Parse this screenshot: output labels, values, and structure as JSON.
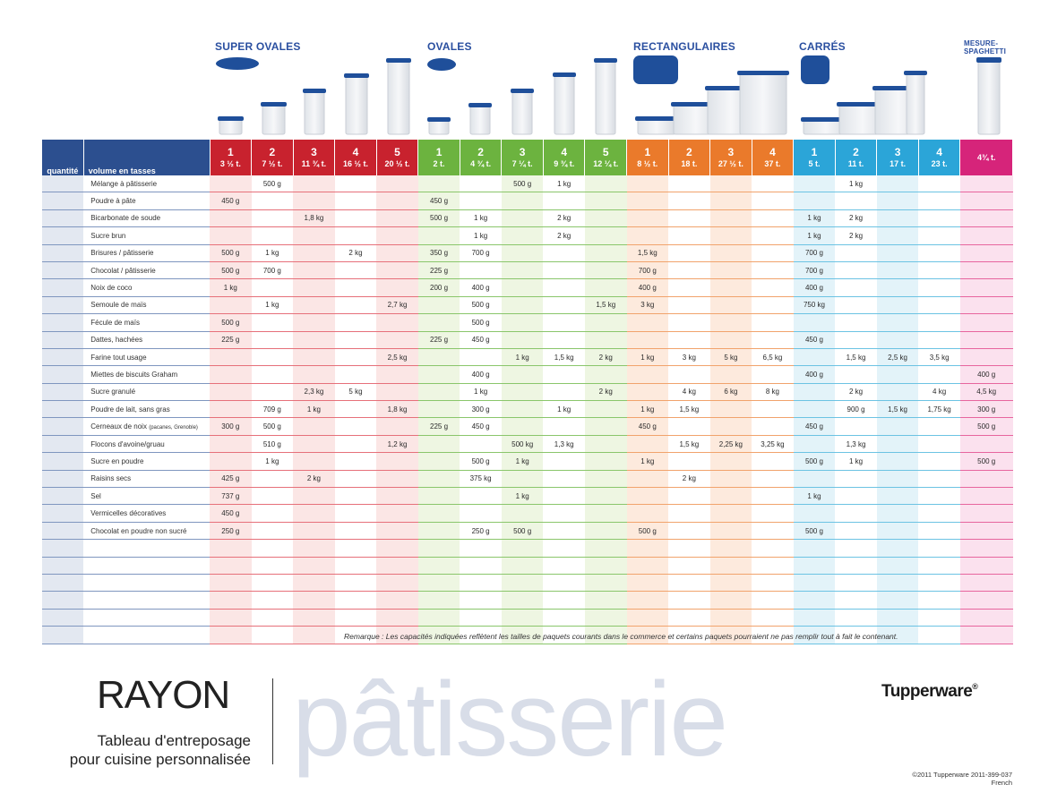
{
  "sections": {
    "super_ovales": "SUPER OVALES",
    "ovales": "OVALES",
    "rectangulaires": "RECTANGULAIRES",
    "carres": "CARRÉS",
    "mesure_spaghetti": "MESURE-SPAGHETTI"
  },
  "header": {
    "quantite": "quantité",
    "volume": "volume en tasses"
  },
  "columns": [
    {
      "group": "rouge",
      "num": "1",
      "vol": "3 ½ t."
    },
    {
      "group": "rouge",
      "num": "2",
      "vol": "7 ½ t."
    },
    {
      "group": "rouge",
      "num": "3",
      "vol": "11 ¾ t."
    },
    {
      "group": "rouge",
      "num": "4",
      "vol": "16 ½ t."
    },
    {
      "group": "rouge",
      "num": "5",
      "vol": "20 ½ t."
    },
    {
      "group": "vert",
      "num": "1",
      "vol": "2 t."
    },
    {
      "group": "vert",
      "num": "2",
      "vol": "4 ¾ t."
    },
    {
      "group": "vert",
      "num": "3",
      "vol": "7 ¼ t."
    },
    {
      "group": "vert",
      "num": "4",
      "vol": "9 ¾ t."
    },
    {
      "group": "vert",
      "num": "5",
      "vol": "12 ¼ t."
    },
    {
      "group": "orange",
      "num": "1",
      "vol": "8 ½ t."
    },
    {
      "group": "orange",
      "num": "2",
      "vol": "18 t."
    },
    {
      "group": "orange",
      "num": "3",
      "vol": "27 ½ t."
    },
    {
      "group": "orange",
      "num": "4",
      "vol": "37 t."
    },
    {
      "group": "bleu",
      "num": "1",
      "vol": "5 t."
    },
    {
      "group": "bleu",
      "num": "2",
      "vol": "11 t."
    },
    {
      "group": "bleu",
      "num": "3",
      "vol": "17 t."
    },
    {
      "group": "bleu",
      "num": "4",
      "vol": "23 t."
    },
    {
      "group": "rose",
      "num": "",
      "vol": "4¾ t."
    }
  ],
  "header_colors": {
    "rouge": "#c8222e",
    "vert": "#6cb33f",
    "orange": "#ea7a2b",
    "bleu": "#2ba5d8",
    "rose": "#d6247a"
  },
  "rows": [
    {
      "item": "Mélange à pâtisserie",
      "values": [
        "",
        "500 g",
        "",
        "",
        "",
        "",
        "",
        "500 g",
        "1 kg",
        "",
        "",
        "",
        "",
        "",
        "",
        "1 kg",
        "",
        "",
        ""
      ]
    },
    {
      "item": "Poudre à pâte",
      "values": [
        "450 g",
        "",
        "",
        "",
        "",
        "450 g",
        "",
        "",
        "",
        "",
        "",
        "",
        "",
        "",
        "",
        "",
        "",
        "",
        ""
      ]
    },
    {
      "item": "Bicarbonate de soude",
      "values": [
        "",
        "",
        "1,8 kg",
        "",
        "",
        "500 g",
        "1 kg",
        "",
        "2 kg",
        "",
        "",
        "",
        "",
        "",
        "1 kg",
        "2 kg",
        "",
        "",
        ""
      ]
    },
    {
      "item": "Sucre brun",
      "values": [
        "",
        "",
        "",
        "",
        "",
        "",
        "1 kg",
        "",
        "2 kg",
        "",
        "",
        "",
        "",
        "",
        "1 kg",
        "2 kg",
        "",
        "",
        ""
      ]
    },
    {
      "item": "Brisures / pâtisserie",
      "values": [
        "500 g",
        "1 kg",
        "",
        "2 kg",
        "",
        "350 g",
        "700 g",
        "",
        "",
        "",
        "1,5 kg",
        "",
        "",
        "",
        "700 g",
        "",
        "",
        "",
        ""
      ]
    },
    {
      "item": "Chocolat / pâtisserie",
      "values": [
        "500 g",
        "700 g",
        "",
        "",
        "",
        "225 g",
        "",
        "",
        "",
        "",
        "700 g",
        "",
        "",
        "",
        "700 g",
        "",
        "",
        "",
        ""
      ]
    },
    {
      "item": "Noix de coco",
      "values": [
        "1 kg",
        "",
        "",
        "",
        "",
        "200 g",
        "400 g",
        "",
        "",
        "",
        "400 g",
        "",
        "",
        "",
        "400 g",
        "",
        "",
        "",
        ""
      ]
    },
    {
      "item": "Semoule de maïs",
      "values": [
        "",
        "1 kg",
        "",
        "",
        "2,7 kg",
        "",
        "500 g",
        "",
        "",
        "1,5 kg",
        "3 kg",
        "",
        "",
        "",
        "750 kg",
        "",
        "",
        "",
        ""
      ]
    },
    {
      "item": "Fécule de maïs",
      "values": [
        "500 g",
        "",
        "",
        "",
        "",
        "",
        "500 g",
        "",
        "",
        "",
        "",
        "",
        "",
        "",
        "",
        "",
        "",
        "",
        ""
      ]
    },
    {
      "item": "Dattes, hachées",
      "values": [
        "225 g",
        "",
        "",
        "",
        "",
        "225 g",
        "450 g",
        "",
        "",
        "",
        "",
        "",
        "",
        "",
        "450 g",
        "",
        "",
        "",
        ""
      ]
    },
    {
      "item": "Farine tout usage",
      "values": [
        "",
        "",
        "",
        "",
        "2,5 kg",
        "",
        "",
        "1 kg",
        "1,5 kg",
        "2 kg",
        "1 kg",
        "3 kg",
        "5 kg",
        "6,5 kg",
        "",
        "1,5 kg",
        "2,5 kg",
        "3,5 kg",
        ""
      ]
    },
    {
      "item": "Miettes de biscuits Graham",
      "values": [
        "",
        "",
        "",
        "",
        "",
        "",
        "400 g",
        "",
        "",
        "",
        "",
        "",
        "",
        "",
        "400 g",
        "",
        "",
        "",
        "400 g"
      ]
    },
    {
      "item": "Sucre granulé",
      "values": [
        "",
        "",
        "2,3 kg",
        "5 kg",
        "",
        "",
        "1 kg",
        "",
        "",
        "2 kg",
        "",
        "4 kg",
        "6 kg",
        "8 kg",
        "",
        "2 kg",
        "",
        "4 kg",
        "4,5 kg"
      ]
    },
    {
      "item": "Poudre de lait, sans gras",
      "values": [
        "",
        "709 g",
        "1 kg",
        "",
        "1,8 kg",
        "",
        "300 g",
        "",
        "1 kg",
        "",
        "1 kg",
        "1,5 kg",
        "",
        "",
        "",
        "900 g",
        "1,5 kg",
        "1,75 kg",
        "300 g"
      ]
    },
    {
      "item": "Cerneaux de noix",
      "item_note": "(pacanes, Grenoble)",
      "values": [
        "300 g",
        "500 g",
        "",
        "",
        "",
        "225 g",
        "450 g",
        "",
        "",
        "",
        "450 g",
        "",
        "",
        "",
        "450 g",
        "",
        "",
        "",
        "500 g"
      ]
    },
    {
      "item": "Flocons d'avoine/gruau",
      "values": [
        "",
        "510 g",
        "",
        "",
        "1,2 kg",
        "",
        "",
        "500 kg",
        "1,3 kg",
        "",
        "",
        "1,5 kg",
        "2,25 kg",
        "3,25 kg",
        "",
        "1,3 kg",
        "",
        "",
        ""
      ]
    },
    {
      "item": "Sucre en poudre",
      "values": [
        "",
        "1 kg",
        "",
        "",
        "",
        "",
        "500 g",
        "1 kg",
        "",
        "",
        "1 kg",
        "",
        "",
        "",
        "500 g",
        "1 kg",
        "",
        "",
        "500 g"
      ]
    },
    {
      "item": "Raisins secs",
      "values": [
        "425 g",
        "",
        "2 kg",
        "",
        "",
        "",
        "375 kg",
        "",
        "",
        "",
        "",
        "2 kg",
        "",
        "",
        "",
        "",
        "",
        "",
        ""
      ]
    },
    {
      "item": "Sel",
      "values": [
        "737 g",
        "",
        "",
        "",
        "",
        "",
        "",
        "1 kg",
        "",
        "",
        "",
        "",
        "",
        "",
        "1 kg",
        "",
        "",
        "",
        ""
      ]
    },
    {
      "item": "Vermicelles décoratives",
      "values": [
        "450 g",
        "",
        "",
        "",
        "",
        "",
        "",
        "",
        "",
        "",
        "",
        "",
        "",
        "",
        "",
        "",
        "",
        "",
        ""
      ]
    },
    {
      "item": "Chocolat en poudre non sucré",
      "values": [
        "250 g",
        "",
        "",
        "",
        "",
        "",
        "250 g",
        "500 g",
        "",
        "",
        "500 g",
        "",
        "",
        "",
        "500 g",
        "",
        "",
        "",
        ""
      ]
    },
    {
      "item": "",
      "values": [
        "",
        "",
        "",
        "",
        "",
        "",
        "",
        "",
        "",
        "",
        "",
        "",
        "",
        "",
        "",
        "",
        "",
        "",
        ""
      ]
    },
    {
      "item": "",
      "values": [
        "",
        "",
        "",
        "",
        "",
        "",
        "",
        "",
        "",
        "",
        "",
        "",
        "",
        "",
        "",
        "",
        "",
        "",
        ""
      ]
    },
    {
      "item": "",
      "values": [
        "",
        "",
        "",
        "",
        "",
        "",
        "",
        "",
        "",
        "",
        "",
        "",
        "",
        "",
        "",
        "",
        "",
        "",
        ""
      ]
    },
    {
      "item": "",
      "values": [
        "",
        "",
        "",
        "",
        "",
        "",
        "",
        "",
        "",
        "",
        "",
        "",
        "",
        "",
        "",
        "",
        "",
        "",
        ""
      ]
    },
    {
      "item": "",
      "values": [
        "",
        "",
        "",
        "",
        "",
        "",
        "",
        "",
        "",
        "",
        "",
        "",
        "",
        "",
        "",
        "",
        "",
        "",
        ""
      ]
    },
    {
      "item": "",
      "values": [
        "",
        "",
        "",
        "",
        "",
        "",
        "",
        "",
        "",
        "",
        "",
        "",
        "",
        "",
        "",
        "",
        "",
        "",
        ""
      ]
    }
  ],
  "footer": {
    "remark": "Remarque : Les capacités indiquées reflètent les tailles de paquets courants dans le commerce et certains paquets pourraient ne pas remplir tout à fait le contenant.",
    "rayon": "RAYON",
    "subtitle_line1": "Tableau d'entreposage",
    "subtitle_line2": "pour cuisine personnalisée",
    "patisserie": "pâtisserie",
    "brand": "Tupperware",
    "registered": "®",
    "copyright": "©2011 Tupperware  2011-399-037",
    "language": "French"
  }
}
